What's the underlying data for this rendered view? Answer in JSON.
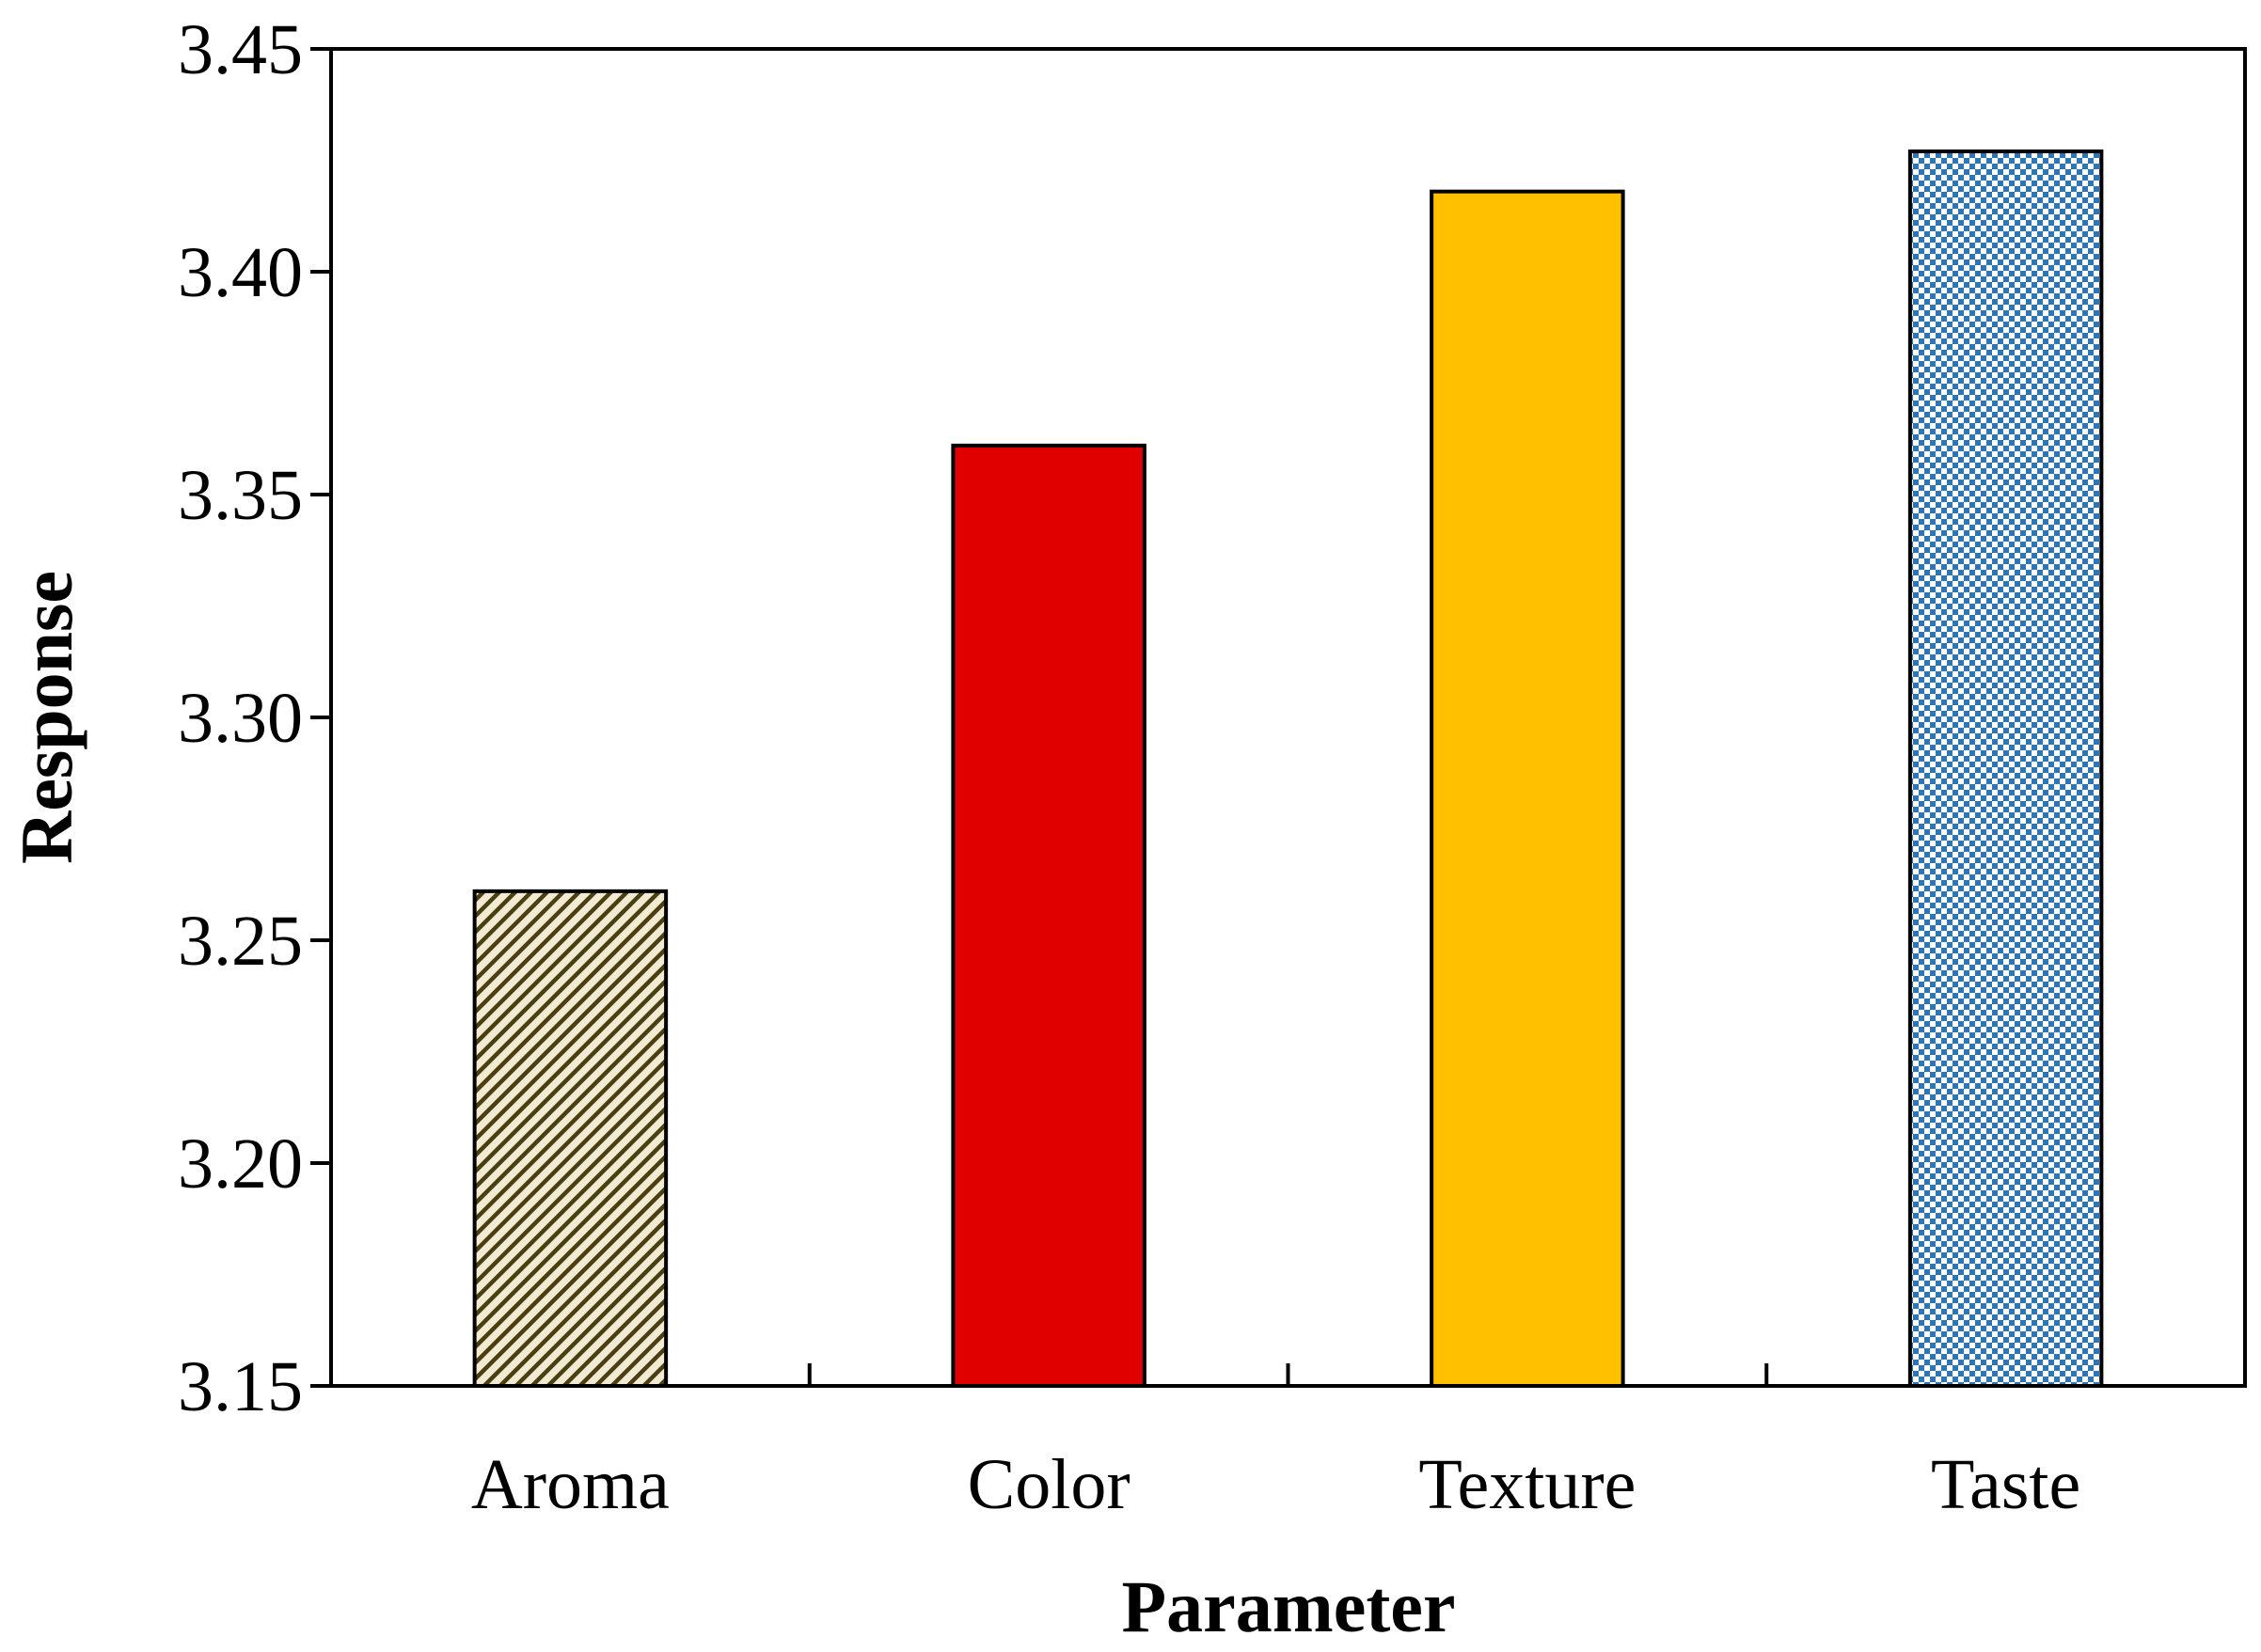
{
  "chart_data": {
    "type": "bar",
    "title": "",
    "xlabel": "Parameter",
    "ylabel": "Response",
    "categories": [
      "Aroma",
      "Color",
      "Texture",
      "Taste"
    ],
    "values": [
      3.261,
      3.361,
      3.418,
      3.427
    ],
    "ylim": [
      3.15,
      3.45
    ],
    "yticks": [
      3.15,
      3.2,
      3.25,
      3.3,
      3.35,
      3.4,
      3.45
    ],
    "ytick_labels": [
      "3.15",
      "3.20",
      "3.25",
      "3.30",
      "3.35",
      "3.40",
      "3.45"
    ],
    "grid": false,
    "legend": "none",
    "bar_styles": [
      {
        "pattern": "diagonal-hatch",
        "fill": "#f2ebd3",
        "stroke": "#4a3f10"
      },
      {
        "pattern": "solid",
        "fill": "#e00000"
      },
      {
        "pattern": "solid",
        "fill": "#ffc000"
      },
      {
        "pattern": "checker",
        "fill": "#ffffff",
        "stroke": "#2e75b6"
      }
    ]
  }
}
